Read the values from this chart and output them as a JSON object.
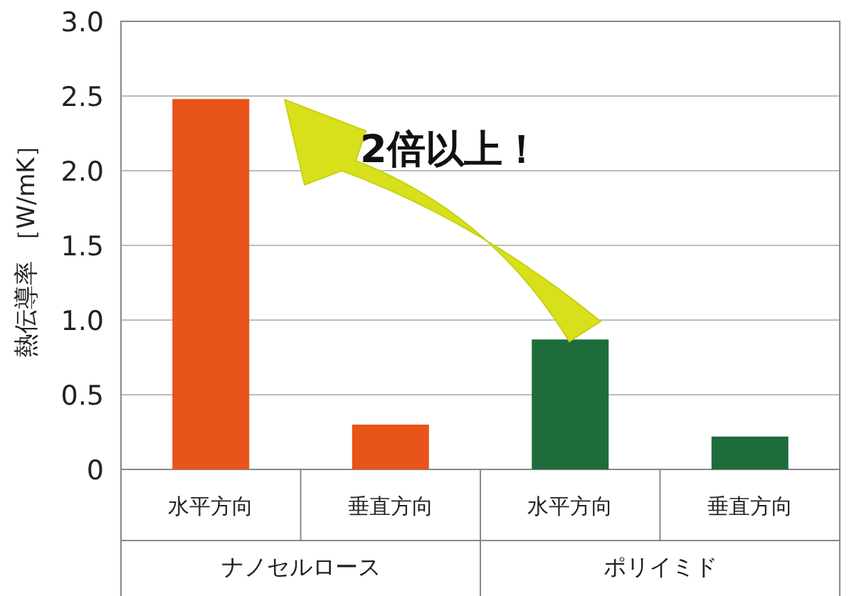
{
  "chart_data": {
    "type": "bar",
    "ylabel": "熱伝導率 ［W/mK］",
    "categories": [
      "水平方向",
      "垂直方向",
      "水平方向",
      "垂直方向"
    ],
    "values": [
      2.48,
      0.3,
      0.87,
      0.22
    ],
    "colors": [
      "#e8541a",
      "#e8541a",
      "#1e6b3c",
      "#1e6b3c"
    ],
    "ylim": [
      0,
      3
    ],
    "yticks": [
      {
        "value": 0,
        "label": "0"
      },
      0.5,
      {
        "value": 1,
        "label": "1.0"
      },
      1.5,
      {
        "value": 2,
        "label": "2.0"
      },
      2.5,
      {
        "value": 3,
        "label": "3.0"
      }
    ],
    "grid": "y",
    "annotations": [
      "ナノセルロース",
      "ポリイミド",
      "2倍以上！"
    ]
  }
}
